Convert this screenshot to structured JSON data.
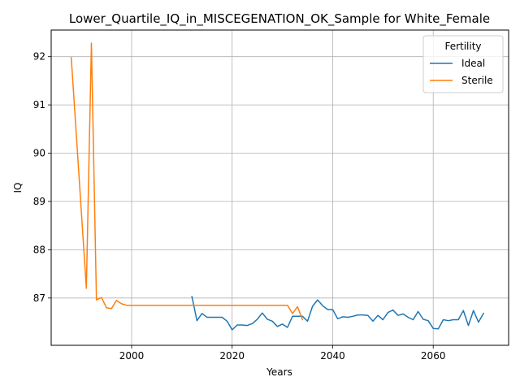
{
  "chart_data": {
    "type": "line",
    "title": "Lower_Quartile_IQ_in_MISCEGENATION_OK_Sample for White_Female",
    "xlabel": "Years",
    "ylabel": "IQ",
    "xlim": [
      1984,
      2075
    ],
    "ylim": [
      86.02,
      92.55
    ],
    "xticks": [
      2000,
      2020,
      2040,
      2060
    ],
    "yticks": [
      87,
      88,
      89,
      90,
      91,
      92
    ],
    "grid": true,
    "legend": {
      "title": "Fertility",
      "placement": "top-right"
    },
    "series": [
      {
        "name": "Ideal",
        "color": "#1f77b4",
        "x": [
          2012,
          2013,
          2014,
          2015,
          2016,
          2017,
          2018,
          2019,
          2020,
          2021,
          2022,
          2023,
          2024,
          2025,
          2026,
          2027,
          2028,
          2029,
          2030,
          2031,
          2032,
          2033,
          2034,
          2035,
          2036,
          2037,
          2038,
          2039,
          2040,
          2041,
          2042,
          2043,
          2044,
          2045,
          2046,
          2047,
          2048,
          2049,
          2050,
          2051,
          2052,
          2053,
          2054,
          2055,
          2056,
          2057,
          2058,
          2059,
          2060,
          2061,
          2062,
          2063,
          2064,
          2065,
          2066,
          2067,
          2068,
          2069,
          2070
        ],
        "values": [
          87.03,
          86.53,
          86.68,
          86.6,
          86.6,
          86.6,
          86.6,
          86.52,
          86.34,
          86.44,
          86.44,
          86.43,
          86.47,
          86.56,
          86.69,
          86.56,
          86.52,
          86.41,
          86.46,
          86.39,
          86.62,
          86.62,
          86.62,
          86.52,
          86.83,
          86.96,
          86.84,
          86.76,
          86.76,
          86.57,
          86.61,
          86.6,
          86.62,
          86.65,
          86.65,
          86.64,
          86.52,
          86.64,
          86.55,
          86.7,
          86.75,
          86.64,
          86.67,
          86.6,
          86.55,
          86.72,
          86.56,
          86.53,
          86.37,
          86.36,
          86.55,
          86.53,
          86.55,
          86.55,
          86.74,
          86.43,
          86.74,
          86.5,
          86.68
        ]
      },
      {
        "name": "Sterile",
        "color": "#ff7f0e",
        "x": [
          1988,
          1991,
          1992,
          1993,
          1994,
          1995,
          1996,
          1997,
          1998,
          1999,
          2000,
          2031,
          2032,
          2033,
          2034
        ],
        "values": [
          91.98,
          87.2,
          92.28,
          86.96,
          87.01,
          86.8,
          86.78,
          86.95,
          86.88,
          86.85,
          86.85,
          86.85,
          86.68,
          86.82,
          86.55
        ]
      }
    ]
  }
}
